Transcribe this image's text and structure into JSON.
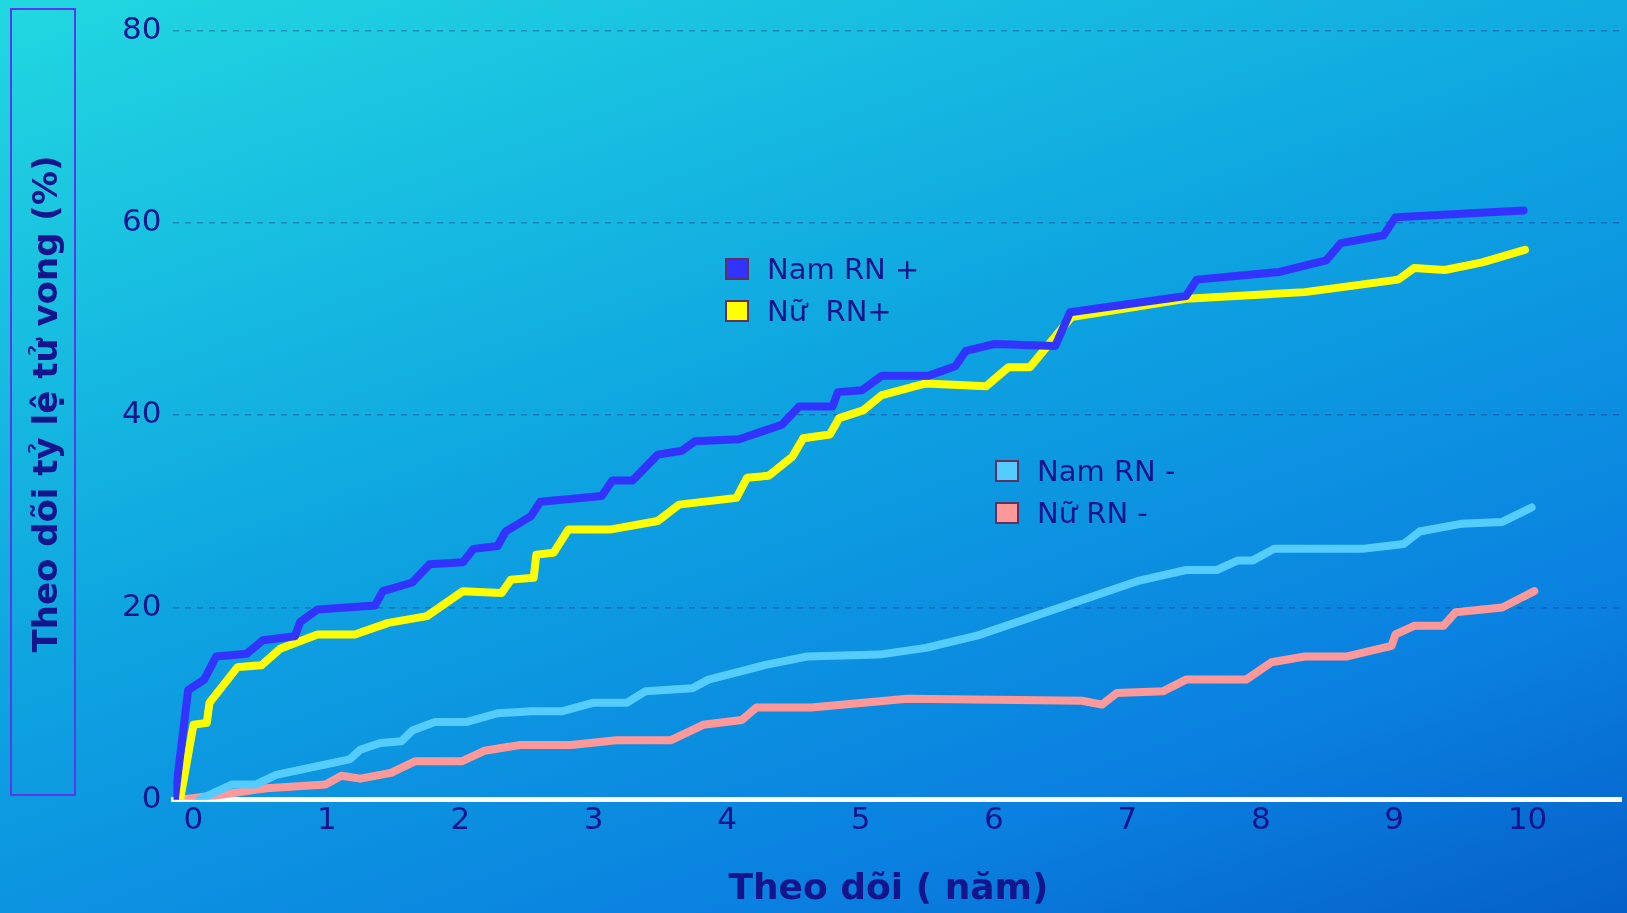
{
  "chart_data": {
    "type": "line",
    "xlabel": "Theo dõi ( năm)",
    "ylabel": "Theo dõi tỷ lệ tử vong (%)",
    "xlim": [
      -0.15,
      10.7
    ],
    "xticks": [
      0,
      1,
      2,
      3,
      4,
      5,
      6,
      7,
      8,
      9,
      10
    ],
    "ylim": [
      0,
      80
    ],
    "yticks": [
      0,
      20,
      40,
      60,
      80
    ],
    "grid": "y",
    "legend": "center",
    "marker": "none",
    "line_style": "solid",
    "series": [
      {
        "name": "Nam RN +",
        "color": "#3333ff",
        "x": [
          -0.14,
          -0.04,
          0.08,
          0.17,
          0.4,
          0.52,
          0.76,
          0.8,
          0.93,
          1.36,
          1.42,
          1.64,
          1.77,
          2.02,
          2.1,
          2.28,
          2.34,
          2.53,
          2.6,
          3.06,
          3.14,
          3.29,
          3.48,
          3.66,
          3.76,
          4.09,
          4.41,
          4.54,
          4.79,
          4.83,
          5.01,
          5.16,
          5.51,
          5.71,
          5.79,
          6.0,
          6.46,
          6.57,
          7.44,
          7.52,
          8.14,
          8.49,
          8.6,
          8.92,
          9.01,
          9.97
        ],
        "values": [
          0,
          11.4,
          12.5,
          14.9,
          15.2,
          16.6,
          17.0,
          18.5,
          19.8,
          20.2,
          21.7,
          22.6,
          24.5,
          24.7,
          26.1,
          26.4,
          27.9,
          29.5,
          31.0,
          31.6,
          33.2,
          33.2,
          35.9,
          36.3,
          37.3,
          37.5,
          39.0,
          40.9,
          40.9,
          42.4,
          42.6,
          44.1,
          44.1,
          45.1,
          46.7,
          47.4,
          47.2,
          50.7,
          52.4,
          54.1,
          54.9,
          56.1,
          57.9,
          58.7,
          60.6,
          61.3
        ]
      },
      {
        "name": "Nữ  RN+",
        "color": "#ffff00",
        "x": [
          -0.1,
          0,
          0.1,
          0.12,
          0.33,
          0.51,
          0.65,
          0.93,
          1.21,
          1.46,
          1.75,
          2.02,
          2.31,
          2.38,
          2.55,
          2.57,
          2.7,
          2.81,
          3.12,
          3.48,
          3.64,
          4.07,
          4.15,
          4.31,
          4.49,
          4.57,
          4.77,
          4.84,
          5.02,
          5.16,
          5.49,
          5.94,
          6.11,
          6.27,
          6.58,
          7.44,
          8.33,
          9.03,
          9.15,
          9.38,
          9.66,
          9.98
        ],
        "values": [
          0,
          7.8,
          8.0,
          10.1,
          13.8,
          14.0,
          15.7,
          17.2,
          17.2,
          18.4,
          19.1,
          21.7,
          21.5,
          22.9,
          23.1,
          25.5,
          25.7,
          28.1,
          28.1,
          29.0,
          30.7,
          31.4,
          33.5,
          33.7,
          35.7,
          37.6,
          38.0,
          39.7,
          40.5,
          42.1,
          43.3,
          43.0,
          45.0,
          45.0,
          50.2,
          52.1,
          52.8,
          54.1,
          55.3,
          55.1,
          55.9,
          57.2
        ]
      },
      {
        "name": "Nam RN -",
        "color": "#55ccff",
        "x": [
          0.04,
          0.29,
          0.47,
          0.62,
          1.17,
          1.25,
          1.4,
          1.56,
          1.64,
          1.81,
          2.05,
          2.28,
          2.53,
          2.76,
          3.0,
          3.25,
          3.39,
          3.74,
          3.86,
          4.28,
          4.6,
          5.14,
          5.49,
          5.88,
          7.09,
          7.44,
          7.67,
          7.83,
          7.94,
          8.1,
          8.76,
          9.07,
          9.19,
          9.5,
          9.81,
          10.03
        ],
        "values": [
          0,
          1.6,
          1.6,
          2.6,
          4.2,
          5.2,
          5.9,
          6.1,
          7.2,
          8.1,
          8.1,
          9.0,
          9.2,
          9.2,
          10.1,
          10.1,
          11.3,
          11.6,
          12.5,
          14.0,
          14.9,
          15.1,
          15.8,
          17.1,
          22.8,
          23.9,
          23.9,
          24.9,
          24.9,
          26.1,
          26.1,
          26.6,
          27.9,
          28.7,
          28.9,
          30.4
        ]
      },
      {
        "name": "Nữ RN -",
        "color": "#ff9999",
        "x": [
          -0.1,
          0.19,
          0.55,
          0.99,
          1.11,
          1.25,
          1.48,
          1.66,
          2.01,
          2.18,
          2.45,
          2.83,
          3.17,
          3.58,
          3.82,
          4.11,
          4.22,
          4.63,
          5.35,
          6.66,
          6.81,
          6.92,
          7.27,
          7.44,
          7.89,
          8.08,
          8.33,
          8.64,
          8.98,
          9.01,
          9.15,
          9.37,
          9.46,
          9.81,
          10.05
        ],
        "values": [
          0,
          0.5,
          1.2,
          1.6,
          2.5,
          2.2,
          2.8,
          4.0,
          4.0,
          5.1,
          5.7,
          5.7,
          6.2,
          6.2,
          7.8,
          8.3,
          9.6,
          9.6,
          10.5,
          10.3,
          9.9,
          11.1,
          11.3,
          12.5,
          12.5,
          14.3,
          14.9,
          14.9,
          16.0,
          17.2,
          18.1,
          18.1,
          19.5,
          20.0,
          21.7
        ]
      }
    ]
  }
}
